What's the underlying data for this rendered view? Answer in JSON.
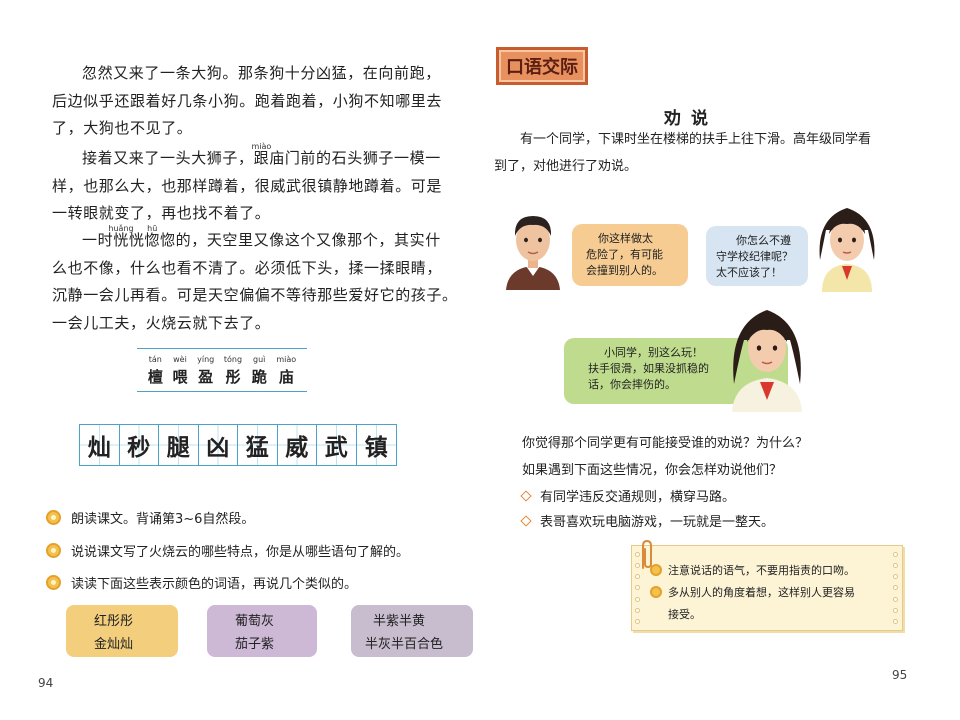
{
  "left_page": {
    "paragraphs": [
      {
        "lines": [
          "忽然又来了一条大狗。那条狗十分凶猛，在向前跑，",
          "后边似乎还跟着好几条小狗。跑着跑着，小狗不知哪里去",
          "了，大狗也不见了。"
        ]
      },
      {
        "line1_a": "接着又来了一头大狮子，",
        "line1_ruby_char": "跟",
        "line1_ruby_pinyin": "miào",
        "line1_b": "庙门前的石头狮子一模一",
        "lines_rest": [
          "样，也那么大，也那样蹲着，很威武很镇静地蹲着。可是",
          "一转眼就变了，再也找不着了。"
        ]
      },
      {
        "line1_a": "一时",
        "ruby1_char": "恍",
        "ruby1_pinyin": "huǎng",
        "mid": "恍",
        "ruby2_char": "惚",
        "ruby2_pinyin": "hū",
        "line1_b": "惚的，天空里又像这个又像那个，其实什",
        "lines_rest": [
          "么也不像，什么也看不清了。必须低下头，揉一揉眼睛，",
          "沉静一会儿再看。可是天空偏偏不等待那些爱好它的孩子。",
          "一会儿工夫，火烧云就下去了。"
        ]
      }
    ],
    "vocab": [
      {
        "pinyin": "tán",
        "char": "檀"
      },
      {
        "pinyin": "wèi",
        "char": "喂"
      },
      {
        "pinyin": "yíng",
        "char": "盈"
      },
      {
        "pinyin": "tóng",
        "char": "彤"
      },
      {
        "pinyin": "guì",
        "char": "跪"
      },
      {
        "pinyin": "miào",
        "char": "庙"
      }
    ],
    "write_chars": [
      "灿",
      "秒",
      "腿",
      "凶",
      "猛",
      "威",
      "武",
      "镇"
    ],
    "tasks": [
      "朗读课文。背诵第3~6自然段。",
      "说说课文写了火烧云的哪些特点，你是从哪些语句了解的。",
      "读读下面这些表示颜色的词语，再说几个类似的。"
    ],
    "color_groups": [
      {
        "line1": "红彤彤",
        "line2": "金灿灿",
        "color": "#f3cf7d"
      },
      {
        "line1": "葡萄灰",
        "line2": "茄子紫",
        "color": "#cdb8d6"
      },
      {
        "line1": "半紫半黄",
        "line2": "半灰半百合色",
        "color": "#c8bccf"
      }
    ],
    "page_number": "94"
  },
  "right_page": {
    "banner": "口语交际",
    "title": "劝说",
    "intro_lines": [
      "有一个同学，下课时坐在楼梯的扶手上往下滑。高年级同学看",
      "到了，对他进行了劝说。"
    ],
    "bubbles": [
      {
        "lines": [
          "你这样做太",
          "危险了，有可能",
          "会撞到别人的。"
        ],
        "color": "#f6cc93"
      },
      {
        "lines": [
          "你怎么不遵",
          "守学校纪律呢？",
          "太不应该了！"
        ],
        "color": "#d7e4f1"
      },
      {
        "lines": [
          "小同学，别这么玩！",
          "扶手很滑，如果没抓稳的",
          "话，你会摔伤的。"
        ],
        "color": "#bfdc8e"
      }
    ],
    "questions": [
      "你觉得那个同学更有可能接受谁的劝说？为什么？",
      "如果遇到下面这些情况，你会怎样劝说他们？"
    ],
    "options": [
      "有同学违反交通规则，横穿马路。",
      "表哥喜欢玩电脑游戏，一玩就是一整天。"
    ],
    "tips": [
      "注意说话的语气，不要用指责的口吻。",
      "多从别人的角度着想，这样别人更容易",
      "接受。"
    ],
    "page_number": "95"
  }
}
